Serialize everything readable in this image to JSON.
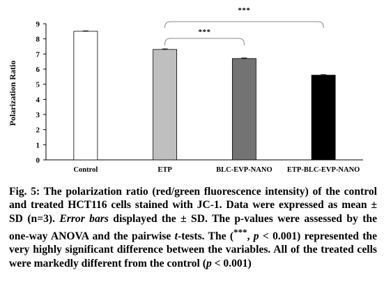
{
  "chart_data": {
    "type": "bar",
    "categories": [
      "Control",
      "ETP",
      "BLC-EVP-NANO",
      "ETP-BLC-EVP-NANO"
    ],
    "values": [
      8.5,
      7.3,
      6.7,
      5.6
    ],
    "errors": [
      0.03,
      0.04,
      0.04,
      0.04
    ],
    "colors": [
      "#ffffff",
      "#bfbfbf",
      "#737373",
      "#000000"
    ],
    "ylabel": "Polarization Ratio",
    "ylim": [
      0,
      9
    ],
    "yticks": [
      0,
      1,
      2,
      3,
      4,
      5,
      6,
      7,
      8,
      9
    ],
    "grid": false,
    "significance": [
      {
        "from": "ETP",
        "to": "BLC-EVP-NANO",
        "label": "***"
      },
      {
        "from": "ETP",
        "to": "ETP-BLC-EVP-NANO",
        "label": "***"
      }
    ]
  },
  "caption": {
    "fig_label": "Fig. 5:",
    "part1": " The polarization ratio (red/green fluorescence intensity) of the control and treated HCT116 cells stained with JC-1. Data were expressed as mean ± SD (n=3). ",
    "error_bars": "Error bars",
    "part2": " displayed the ± SD. The p-values were assessed by the one-way ANOVA and the pairwise ",
    "t": "t",
    "part3": "-tests. The (",
    "sup": "***",
    "part4": ", ",
    "p1": "p",
    "part5": " < 0.001) represented the very highly significant difference between the variables. All of the treated cells were markedly different from the control (",
    "p2": "p",
    "part6": " < 0.001)"
  }
}
